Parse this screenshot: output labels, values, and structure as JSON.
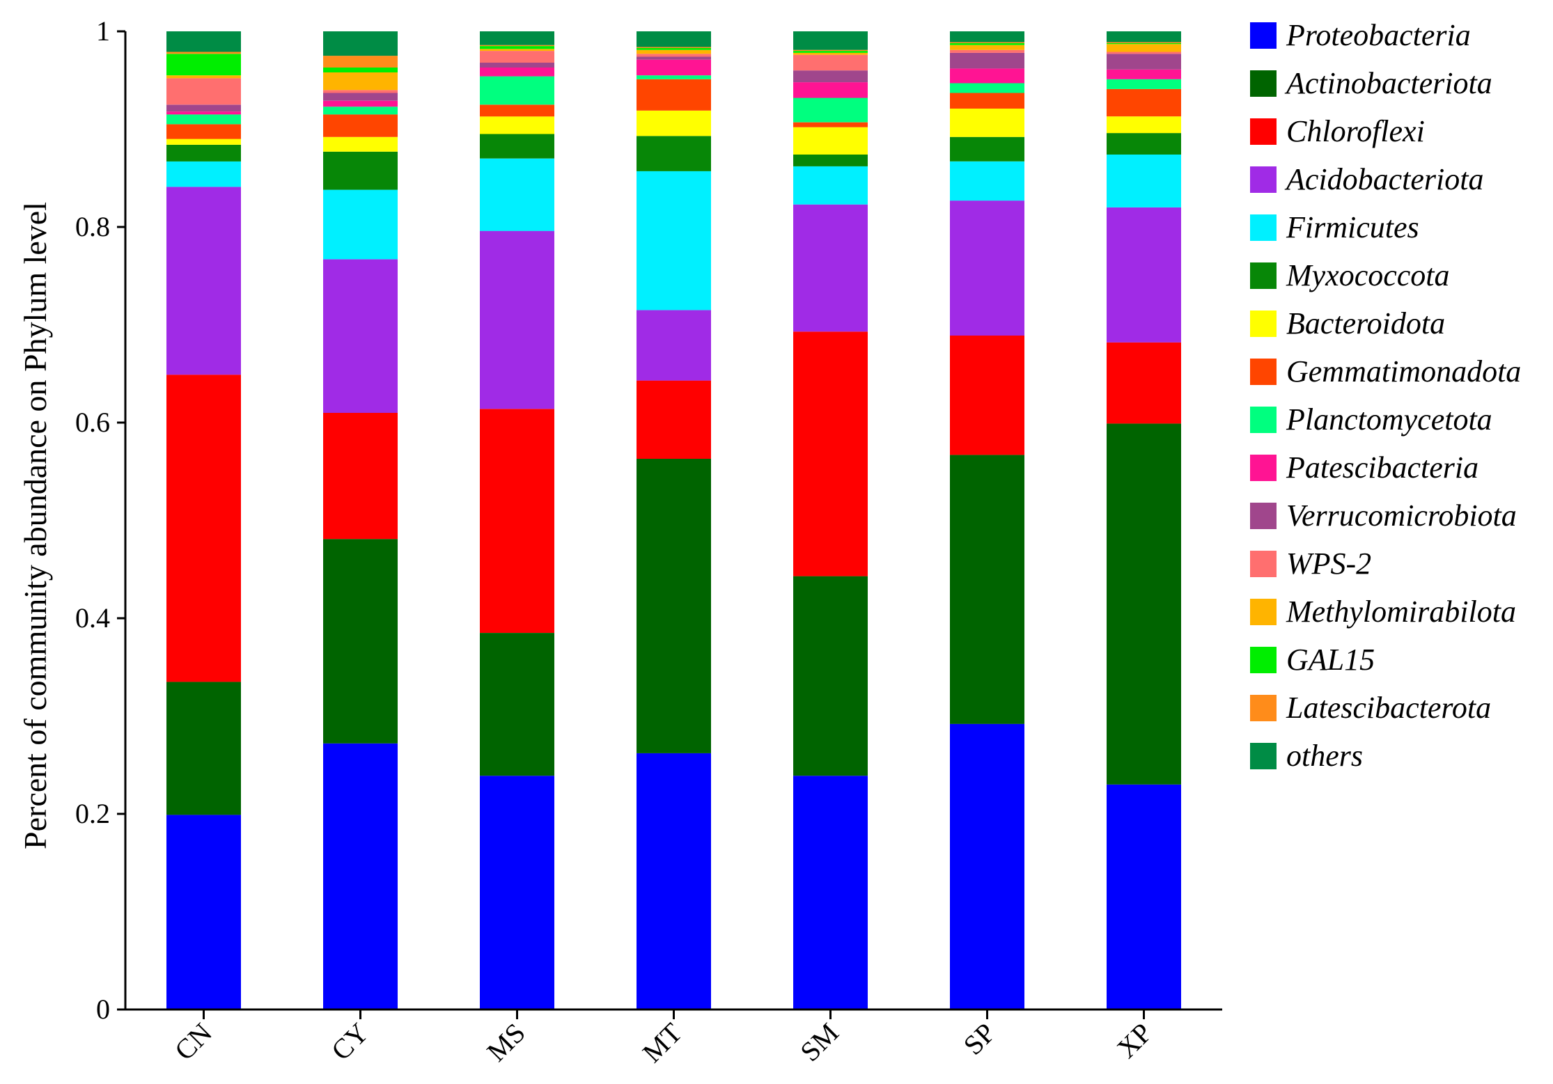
{
  "chart_data": {
    "type": "bar",
    "stacked": true,
    "ylabel": "Percent of community abundance on Phylum level",
    "xlabel": "",
    "ylim": [
      0,
      1
    ],
    "yticks": [
      "0",
      "0.2",
      "0.4",
      "0.6",
      "0.8",
      "1"
    ],
    "categories": [
      "CN",
      "CY",
      "MS",
      "MT",
      "SM",
      "SP",
      "XP"
    ],
    "legend_position": "right",
    "series": [
      {
        "name": "Proteobacteria",
        "color": "#0000ff",
        "values": [
          0.199,
          0.272,
          0.239,
          0.262,
          0.239,
          0.292,
          0.23
        ]
      },
      {
        "name": "Actinobacteriota",
        "color": "#006400",
        "values": [
          0.136,
          0.209,
          0.146,
          0.301,
          0.204,
          0.275,
          0.369
        ]
      },
      {
        "name": "Chloroflexi",
        "color": "#ff0000",
        "values": [
          0.314,
          0.129,
          0.229,
          0.08,
          0.25,
          0.122,
          0.083
        ]
      },
      {
        "name": "Acidobacteriota",
        "color": "#a02be6",
        "values": [
          0.192,
          0.157,
          0.182,
          0.072,
          0.13,
          0.138,
          0.138
        ]
      },
      {
        "name": "Firmicutes",
        "color": "#00f0ff",
        "values": [
          0.026,
          0.071,
          0.074,
          0.142,
          0.039,
          0.04,
          0.054
        ]
      },
      {
        "name": "Myxococcota",
        "color": "#078707",
        "values": [
          0.017,
          0.039,
          0.025,
          0.036,
          0.012,
          0.025,
          0.022
        ]
      },
      {
        "name": "Bacteroidota",
        "color": "#ffff00",
        "values": [
          0.006,
          0.015,
          0.018,
          0.026,
          0.028,
          0.029,
          0.017
        ]
      },
      {
        "name": "Gemmatimonadota",
        "color": "#ff4500",
        "values": [
          0.015,
          0.023,
          0.012,
          0.032,
          0.005,
          0.016,
          0.028
        ]
      },
      {
        "name": "Planctomycetota",
        "color": "#00ff7f",
        "values": [
          0.01,
          0.008,
          0.029,
          0.004,
          0.025,
          0.01,
          0.01
        ]
      },
      {
        "name": "Patescibacteria",
        "color": "#ff1493",
        "values": [
          0.003,
          0.006,
          0.009,
          0.016,
          0.016,
          0.015,
          0.01
        ]
      },
      {
        "name": "Verrucomicrobiota",
        "color": "#a0468c",
        "values": [
          0.007,
          0.008,
          0.005,
          0.003,
          0.012,
          0.016,
          0.016
        ]
      },
      {
        "name": "WPS-2",
        "color": "#ff6f6f",
        "values": [
          0.027,
          0.003,
          0.012,
          0.003,
          0.016,
          0.003,
          0.002
        ]
      },
      {
        "name": "Methylomirabilota",
        "color": "#ffb400",
        "values": [
          0.003,
          0.018,
          0.002,
          0.004,
          0.002,
          0.005,
          0.008
        ]
      },
      {
        "name": "GAL15",
        "color": "#00ee00",
        "values": [
          0.022,
          0.005,
          0.003,
          0.002,
          0.002,
          0.002,
          0.001
        ]
      },
      {
        "name": "Latescibacterota",
        "color": "#ff8c1a",
        "values": [
          0.002,
          0.012,
          0.001,
          0.001,
          0.001,
          0.001,
          0.001
        ]
      },
      {
        "name": "others",
        "color": "#008c45",
        "values": [
          0.021,
          0.025,
          0.014,
          0.016,
          0.019,
          0.011,
          0.011
        ]
      }
    ]
  }
}
